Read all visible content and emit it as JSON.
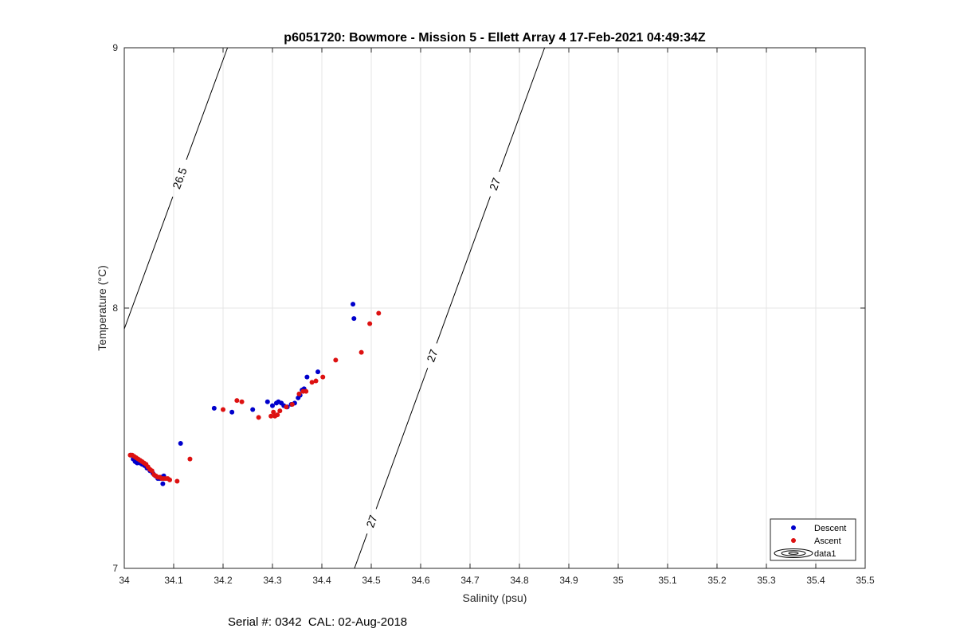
{
  "chart_data": {
    "type": "scatter",
    "title": "p6051720: Bowmore - Mission 5 - Ellett Array 4 17-Feb-2021 04:49:34Z",
    "xlabel": "Salinity (psu)",
    "ylabel": "Temperature (°C)",
    "xlim": [
      34,
      35.5
    ],
    "ylim": [
      7,
      9
    ],
    "x_ticks": [
      34,
      34.1,
      34.2,
      34.3,
      34.4,
      34.5,
      34.6,
      34.7,
      34.8,
      34.9,
      35,
      35.1,
      35.2,
      35.3,
      35.4,
      35.5
    ],
    "x_tick_labels": [
      "34",
      "34.1",
      "34.2",
      "34.3",
      "34.4",
      "34.5",
      "34.6",
      "34.7",
      "34.8",
      "34.9",
      "35",
      "35.1",
      "35.2",
      "35.3",
      "35.4",
      "35.5"
    ],
    "y_ticks": [
      7,
      8,
      9
    ],
    "y_tick_labels": [
      "7",
      "8",
      "9"
    ],
    "grid": true,
    "legend_position": "bottom-right",
    "legend": [
      {
        "label": "Descent",
        "color": "#0000cc",
        "marker": "dot"
      },
      {
        "label": "Ascent",
        "color": "#dd1111",
        "marker": "dot"
      },
      {
        "label": "data1",
        "marker": "contour"
      }
    ],
    "contours": [
      {
        "label": "26.5",
        "points": [
          [
            34.0,
            7.92
          ],
          [
            34.209,
            9.0
          ]
        ],
        "label_positions": [
          [
            34.11,
            8.5
          ]
        ]
      },
      {
        "label": "27",
        "points": [
          [
            34.466,
            7.0
          ],
          [
            34.851,
            9.0
          ]
        ],
        "label_positions": [
          [
            34.502,
            7.18
          ],
          [
            34.619,
            7.82
          ],
          [
            34.745,
            8.48
          ]
        ]
      }
    ],
    "series": [
      {
        "name": "Descent",
        "color": "#0000cc",
        "x": [
          34.013,
          34.018,
          34.022,
          34.026,
          34.031,
          34.036,
          34.041,
          34.046,
          34.052,
          34.058,
          34.063,
          34.068,
          34.072,
          34.075,
          34.078,
          34.08,
          34.114,
          34.182,
          34.218,
          34.26,
          34.29,
          34.3,
          34.308,
          34.312,
          34.318,
          34.323,
          34.33,
          34.338,
          34.345,
          34.352,
          34.356,
          34.36,
          34.364,
          34.37,
          34.392,
          34.463,
          34.465
        ],
        "y": [
          7.435,
          7.42,
          7.41,
          7.405,
          7.405,
          7.4,
          7.395,
          7.385,
          7.375,
          7.365,
          7.355,
          7.345,
          7.345,
          7.35,
          7.325,
          7.355,
          7.48,
          7.615,
          7.6,
          7.61,
          7.64,
          7.625,
          7.635,
          7.64,
          7.635,
          7.625,
          7.62,
          7.63,
          7.635,
          7.655,
          7.665,
          7.685,
          7.69,
          7.735,
          7.755,
          8.015,
          7.96
        ]
      },
      {
        "name": "Ascent",
        "color": "#dd1111",
        "x": [
          34.012,
          34.016,
          34.02,
          34.024,
          34.028,
          34.032,
          34.036,
          34.04,
          34.044,
          34.048,
          34.052,
          34.056,
          34.06,
          34.064,
          34.068,
          34.072,
          34.076,
          34.08,
          34.084,
          34.088,
          34.092,
          34.107,
          34.133,
          34.2,
          34.228,
          34.238,
          34.272,
          34.297,
          34.302,
          34.305,
          34.31,
          34.315,
          34.328,
          34.34,
          34.354,
          34.362,
          34.368,
          34.38,
          34.388,
          34.402,
          34.428,
          34.48,
          34.497,
          34.515
        ],
        "y": [
          7.435,
          7.435,
          7.43,
          7.425,
          7.42,
          7.415,
          7.41,
          7.405,
          7.4,
          7.39,
          7.38,
          7.375,
          7.36,
          7.355,
          7.35,
          7.35,
          7.345,
          7.345,
          7.345,
          7.345,
          7.34,
          7.335,
          7.42,
          7.61,
          7.645,
          7.64,
          7.58,
          7.585,
          7.6,
          7.585,
          7.59,
          7.605,
          7.62,
          7.63,
          7.67,
          7.68,
          7.68,
          7.715,
          7.72,
          7.735,
          7.8,
          7.83,
          7.94,
          7.98
        ]
      }
    ]
  },
  "footer": {
    "serial_label": "Serial #: 0342  CAL: 02-Aug-2018"
  }
}
